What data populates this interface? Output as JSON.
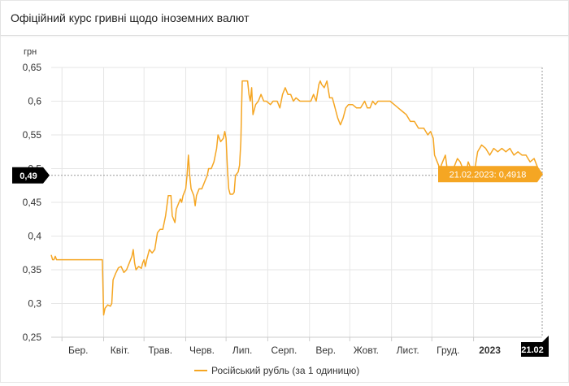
{
  "header": {
    "title": "Офіційний курс гривні щодо іноземних валют"
  },
  "chart_data": {
    "type": "line",
    "ylabel": "грн",
    "ylim": [
      0.25,
      0.65
    ],
    "yticks": [
      0.25,
      0.3,
      0.35,
      0.4,
      0.45,
      0.5,
      0.55,
      0.6,
      0.65
    ],
    "ytick_labels": [
      "0,25",
      "0,3",
      "0,35",
      "0,4",
      "0,45",
      "0,5",
      "0,55",
      "0,6",
      "0,65"
    ],
    "xlim": [
      "2022-02-21",
      "2023-02-21"
    ],
    "xticks": [
      {
        "date": "2022-03-01",
        "label": "Бер."
      },
      {
        "date": "2022-04-01",
        "label": "Квіт."
      },
      {
        "date": "2022-05-01",
        "label": "Трав."
      },
      {
        "date": "2022-06-01",
        "label": "Черв."
      },
      {
        "date": "2022-07-01",
        "label": "Лип."
      },
      {
        "date": "2022-08-01",
        "label": "Серп."
      },
      {
        "date": "2022-09-01",
        "label": "Вер."
      },
      {
        "date": "2022-10-01",
        "label": "Жовт."
      },
      {
        "date": "2022-11-01",
        "label": "Лист."
      },
      {
        "date": "2022-12-01",
        "label": "Груд."
      },
      {
        "date": "2023-01-01",
        "label": "2023"
      }
    ],
    "grid": true,
    "legend_position": "bottom",
    "colors": {
      "series": "#f5a623",
      "crosshair_box": "#000000",
      "tooltip_bg": "#f5a623",
      "grid": "#e6e6e6"
    },
    "crosshair": {
      "value": 0.49,
      "value_label": "0,49",
      "date_label": "21.02"
    },
    "tooltip": {
      "text": "21.02.2023: 0,4918",
      "date": "2023-02-21",
      "value": 0.4918
    },
    "series": [
      {
        "name": "Російський рубль (за 1 одиницю)",
        "points": [
          [
            "2022-02-21",
            0.372
          ],
          [
            "2022-02-22",
            0.365
          ],
          [
            "2022-02-23",
            0.365
          ],
          [
            "2022-02-24",
            0.37
          ],
          [
            "2022-02-25",
            0.365
          ],
          [
            "2022-03-05",
            0.365
          ],
          [
            "2022-03-15",
            0.365
          ],
          [
            "2022-03-25",
            0.365
          ],
          [
            "2022-03-31",
            0.365
          ],
          [
            "2022-04-01",
            0.283
          ],
          [
            "2022-04-02",
            0.293
          ],
          [
            "2022-04-04",
            0.298
          ],
          [
            "2022-04-06",
            0.296
          ],
          [
            "2022-04-07",
            0.3
          ],
          [
            "2022-04-08",
            0.335
          ],
          [
            "2022-04-10",
            0.345
          ],
          [
            "2022-04-12",
            0.353
          ],
          [
            "2022-04-14",
            0.355
          ],
          [
            "2022-04-16",
            0.346
          ],
          [
            "2022-04-18",
            0.35
          ],
          [
            "2022-04-20",
            0.36
          ],
          [
            "2022-04-22",
            0.37
          ],
          [
            "2022-04-23",
            0.38
          ],
          [
            "2022-04-24",
            0.36
          ],
          [
            "2022-04-25",
            0.35
          ],
          [
            "2022-04-27",
            0.355
          ],
          [
            "2022-04-29",
            0.352
          ],
          [
            "2022-04-30",
            0.36
          ],
          [
            "2022-05-01",
            0.365
          ],
          [
            "2022-05-02",
            0.355
          ],
          [
            "2022-05-03",
            0.365
          ],
          [
            "2022-05-05",
            0.38
          ],
          [
            "2022-05-07",
            0.375
          ],
          [
            "2022-05-09",
            0.38
          ],
          [
            "2022-05-11",
            0.405
          ],
          [
            "2022-05-13",
            0.41
          ],
          [
            "2022-05-15",
            0.41
          ],
          [
            "2022-05-17",
            0.43
          ],
          [
            "2022-05-19",
            0.46
          ],
          [
            "2022-05-21",
            0.46
          ],
          [
            "2022-05-22",
            0.43
          ],
          [
            "2022-05-24",
            0.42
          ],
          [
            "2022-05-25",
            0.44
          ],
          [
            "2022-05-27",
            0.45
          ],
          [
            "2022-05-28",
            0.455
          ],
          [
            "2022-05-29",
            0.45
          ],
          [
            "2022-05-30",
            0.46
          ],
          [
            "2022-06-01",
            0.47
          ],
          [
            "2022-06-02",
            0.49
          ],
          [
            "2022-06-03",
            0.52
          ],
          [
            "2022-06-04",
            0.49
          ],
          [
            "2022-06-05",
            0.47
          ],
          [
            "2022-06-07",
            0.46
          ],
          [
            "2022-06-08",
            0.445
          ],
          [
            "2022-06-09",
            0.46
          ],
          [
            "2022-06-11",
            0.47
          ],
          [
            "2022-06-13",
            0.47
          ],
          [
            "2022-06-15",
            0.48
          ],
          [
            "2022-06-17",
            0.49
          ],
          [
            "2022-06-18",
            0.5
          ],
          [
            "2022-06-20",
            0.5
          ],
          [
            "2022-06-22",
            0.51
          ],
          [
            "2022-06-24",
            0.53
          ],
          [
            "2022-06-25",
            0.55
          ],
          [
            "2022-06-27",
            0.54
          ],
          [
            "2022-06-29",
            0.545
          ],
          [
            "2022-06-30",
            0.555
          ],
          [
            "2022-07-01",
            0.545
          ],
          [
            "2022-07-02",
            0.5
          ],
          [
            "2022-07-03",
            0.47
          ],
          [
            "2022-07-04",
            0.462
          ],
          [
            "2022-07-06",
            0.462
          ],
          [
            "2022-07-07",
            0.465
          ],
          [
            "2022-07-08",
            0.49
          ],
          [
            "2022-07-10",
            0.495
          ],
          [
            "2022-07-11",
            0.505
          ],
          [
            "2022-07-12",
            0.54
          ],
          [
            "2022-07-13",
            0.63
          ],
          [
            "2022-07-15",
            0.63
          ],
          [
            "2022-07-17",
            0.63
          ],
          [
            "2022-07-18",
            0.61
          ],
          [
            "2022-07-19",
            0.6
          ],
          [
            "2022-07-20",
            0.62
          ],
          [
            "2022-07-21",
            0.58
          ],
          [
            "2022-07-23",
            0.595
          ],
          [
            "2022-07-25",
            0.6
          ],
          [
            "2022-07-27",
            0.61
          ],
          [
            "2022-07-29",
            0.6
          ],
          [
            "2022-07-31",
            0.6
          ],
          [
            "2022-08-03",
            0.595
          ],
          [
            "2022-08-05",
            0.6
          ],
          [
            "2022-08-08",
            0.6
          ],
          [
            "2022-08-10",
            0.59
          ],
          [
            "2022-08-12",
            0.61
          ],
          [
            "2022-08-14",
            0.62
          ],
          [
            "2022-08-16",
            0.61
          ],
          [
            "2022-08-18",
            0.61
          ],
          [
            "2022-08-20",
            0.6
          ],
          [
            "2022-08-22",
            0.605
          ],
          [
            "2022-08-25",
            0.6
          ],
          [
            "2022-08-28",
            0.6
          ],
          [
            "2022-08-31",
            0.6
          ],
          [
            "2022-09-02",
            0.6
          ],
          [
            "2022-09-04",
            0.61
          ],
          [
            "2022-09-06",
            0.6
          ],
          [
            "2022-09-08",
            0.625
          ],
          [
            "2022-09-09",
            0.63
          ],
          [
            "2022-09-10",
            0.625
          ],
          [
            "2022-09-12",
            0.62
          ],
          [
            "2022-09-14",
            0.63
          ],
          [
            "2022-09-16",
            0.605
          ],
          [
            "2022-09-18",
            0.605
          ],
          [
            "2022-09-20",
            0.59
          ],
          [
            "2022-09-22",
            0.575
          ],
          [
            "2022-09-24",
            0.565
          ],
          [
            "2022-09-26",
            0.575
          ],
          [
            "2022-09-28",
            0.59
          ],
          [
            "2022-09-30",
            0.595
          ],
          [
            "2022-10-03",
            0.595
          ],
          [
            "2022-10-06",
            0.59
          ],
          [
            "2022-10-09",
            0.59
          ],
          [
            "2022-10-12",
            0.6
          ],
          [
            "2022-10-14",
            0.59
          ],
          [
            "2022-10-16",
            0.59
          ],
          [
            "2022-10-18",
            0.6
          ],
          [
            "2022-10-20",
            0.595
          ],
          [
            "2022-10-22",
            0.6
          ],
          [
            "2022-10-25",
            0.6
          ],
          [
            "2022-10-28",
            0.6
          ],
          [
            "2022-10-31",
            0.6
          ],
          [
            "2022-11-03",
            0.595
          ],
          [
            "2022-11-06",
            0.59
          ],
          [
            "2022-11-09",
            0.585
          ],
          [
            "2022-11-12",
            0.58
          ],
          [
            "2022-11-15",
            0.57
          ],
          [
            "2022-11-18",
            0.57
          ],
          [
            "2022-11-21",
            0.56
          ],
          [
            "2022-11-23",
            0.56
          ],
          [
            "2022-11-25",
            0.56
          ],
          [
            "2022-11-28",
            0.55
          ],
          [
            "2022-11-30",
            0.555
          ],
          [
            "2022-12-02",
            0.545
          ],
          [
            "2022-12-03",
            0.52
          ],
          [
            "2022-12-05",
            0.51
          ],
          [
            "2022-12-07",
            0.5
          ],
          [
            "2022-12-09",
            0.51
          ],
          [
            "2022-12-11",
            0.52
          ],
          [
            "2022-12-13",
            0.49
          ],
          [
            "2022-12-15",
            0.495
          ],
          [
            "2022-12-17",
            0.5
          ],
          [
            "2022-12-20",
            0.515
          ],
          [
            "2022-12-22",
            0.51
          ],
          [
            "2022-12-24",
            0.5
          ],
          [
            "2022-12-26",
            0.49
          ],
          [
            "2022-12-28",
            0.51
          ],
          [
            "2022-12-30",
            0.5
          ],
          [
            "2023-01-02",
            0.5
          ],
          [
            "2023-01-04",
            0.525
          ],
          [
            "2023-01-07",
            0.535
          ],
          [
            "2023-01-10",
            0.53
          ],
          [
            "2023-01-13",
            0.52
          ],
          [
            "2023-01-16",
            0.53
          ],
          [
            "2023-01-19",
            0.525
          ],
          [
            "2023-01-22",
            0.53
          ],
          [
            "2023-01-25",
            0.525
          ],
          [
            "2023-01-28",
            0.53
          ],
          [
            "2023-01-31",
            0.52
          ],
          [
            "2023-02-03",
            0.525
          ],
          [
            "2023-02-06",
            0.52
          ],
          [
            "2023-02-09",
            0.52
          ],
          [
            "2023-02-12",
            0.51
          ],
          [
            "2023-02-15",
            0.515
          ],
          [
            "2023-02-18",
            0.5
          ],
          [
            "2023-02-21",
            0.4918
          ]
        ]
      }
    ]
  }
}
